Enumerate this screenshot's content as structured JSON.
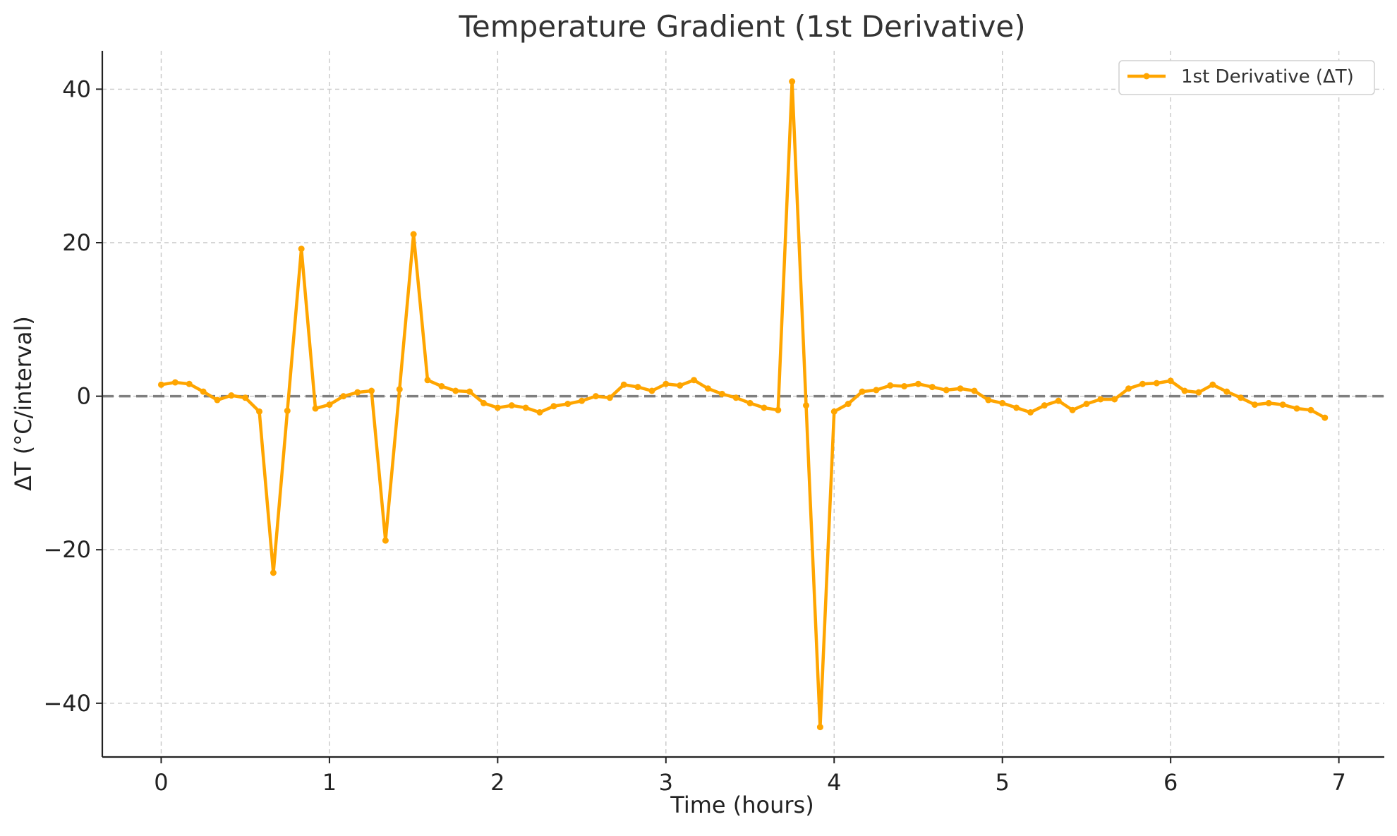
{
  "chart_data": {
    "type": "line",
    "title": "Temperature Gradient (1st Derivative)",
    "xlabel": "Time (hours)",
    "ylabel": "ΔT (°C/interval)",
    "xlim": [
      -0.35,
      7.27
    ],
    "ylim": [
      -47,
      45
    ],
    "x_ticks": [
      0,
      1,
      2,
      3,
      4,
      5,
      6,
      7
    ],
    "x_tick_labels": [
      "0",
      "1",
      "2",
      "3",
      "4",
      "5",
      "6",
      "7"
    ],
    "y_ticks": [
      40,
      20,
      0,
      -20,
      -40
    ],
    "y_tick_labels": [
      "40",
      "20",
      "0",
      "−20",
      "−40"
    ],
    "grid": true,
    "legend": {
      "position": "top-right",
      "entries": [
        "1st Derivative (ΔT)"
      ]
    },
    "reference_line": {
      "y": 0,
      "style": "dashed",
      "color": "#7f7f7f"
    },
    "series": [
      {
        "name": "1st Derivative (ΔT)",
        "color": "#FFA500",
        "x": [
          0,
          0.0833,
          0.1667,
          0.25,
          0.3333,
          0.4167,
          0.5,
          0.5833,
          0.6667,
          0.75,
          0.8333,
          0.9167,
          1,
          1.0833,
          1.1667,
          1.25,
          1.3333,
          1.4167,
          1.5,
          1.5833,
          1.6667,
          1.75,
          1.8333,
          1.9167,
          2,
          2.0833,
          2.1667,
          2.25,
          2.3333,
          2.4167,
          2.5,
          2.5833,
          2.6667,
          2.75,
          2.8333,
          2.9167,
          3,
          3.0833,
          3.1667,
          3.25,
          3.3333,
          3.4167,
          3.5,
          3.5833,
          3.6667,
          3.75,
          3.8333,
          3.9167,
          4,
          4.0833,
          4.1667,
          4.25,
          4.3333,
          4.4167,
          4.5,
          4.5833,
          4.6667,
          4.75,
          4.8333,
          4.9167,
          5,
          5.0833,
          5.1667,
          5.25,
          5.3333,
          5.4167,
          5.5,
          5.5833,
          5.6667,
          5.75,
          5.8333,
          5.9167,
          6,
          6.0833,
          6.1667,
          6.25,
          6.3333,
          6.4167,
          6.5,
          6.5833,
          6.6667,
          6.75,
          6.8333,
          6.9167
        ],
        "y": [
          1.5,
          1.8,
          1.6,
          0.6,
          -0.5,
          0.1,
          -0.2,
          -2.0,
          -23.0,
          -1.9,
          19.2,
          -1.6,
          -1.1,
          0.0,
          0.5,
          0.7,
          -18.8,
          0.9,
          21.1,
          2.1,
          1.3,
          0.7,
          0.6,
          -0.9,
          -1.5,
          -1.2,
          -1.5,
          -2.1,
          -1.3,
          -1.0,
          -0.6,
          0.0,
          -0.2,
          1.5,
          1.2,
          0.7,
          1.6,
          1.4,
          2.1,
          1.0,
          0.3,
          -0.2,
          -0.9,
          -1.5,
          -1.8,
          41.0,
          -1.2,
          -43.1,
          -2.0,
          -1.0,
          0.6,
          0.8,
          1.4,
          1.3,
          1.6,
          1.2,
          0.8,
          1.0,
          0.7,
          -0.5,
          -0.9,
          -1.5,
          -2.1,
          -1.2,
          -0.6,
          -1.8,
          -1.0,
          -0.4,
          -0.4,
          1.0,
          1.6,
          1.7,
          2.0,
          0.7,
          0.5,
          1.5,
          0.6,
          -0.2,
          -1.1,
          -0.9,
          -1.1,
          -1.6,
          -1.8,
          -2.8
        ]
      }
    ]
  }
}
